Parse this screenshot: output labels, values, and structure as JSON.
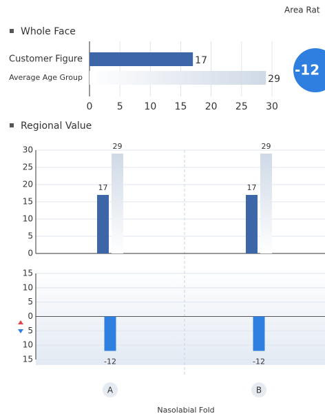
{
  "header": {
    "corner_text": "Area Rat",
    "badge": "-12"
  },
  "chart_data": [
    {
      "type": "hbar",
      "title": "Whole Face",
      "categories": [
        "Customer Figure",
        "Average Age Group"
      ],
      "values": [
        17,
        29
      ],
      "colors": [
        "#3d66a8",
        "#dbe3ee"
      ],
      "xlim": [
        0,
        30
      ],
      "xticks": [
        0,
        5,
        10,
        15,
        20,
        25,
        30
      ],
      "grid": true
    },
    {
      "type": "bar",
      "title": "Regional Value",
      "categories": [
        "A",
        "B"
      ],
      "series": [
        {
          "color": "#3d66a8",
          "values": [
            17,
            17
          ]
        },
        {
          "color": "#d5deea",
          "values": [
            29,
            29
          ]
        }
      ],
      "ylim": [
        0,
        30
      ],
      "yticks": [
        0,
        5,
        10,
        15,
        20,
        25,
        30
      ],
      "grid": true
    },
    {
      "type": "bar",
      "x_label": "Nasolabial Fold",
      "categories": [
        "A",
        "B"
      ],
      "values": [
        -12,
        -12
      ],
      "color": "#2f7fe0",
      "ylim": [
        -15,
        15
      ],
      "yticks": [
        {
          "value": -15,
          "label": "15"
        },
        {
          "value": -10,
          "label": "10"
        },
        {
          "value": -5,
          "label": "5"
        },
        0,
        5,
        10,
        15
      ],
      "grid": true
    }
  ]
}
